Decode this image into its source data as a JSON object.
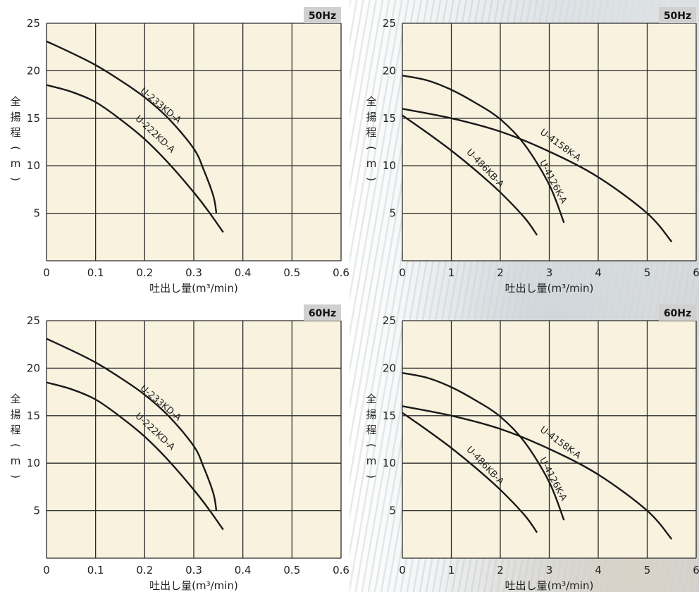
{
  "chart_data": [
    {
      "type": "line",
      "badge": "50Hz",
      "xlabel": "吐出し量(m³/min)",
      "ylabel": "全揚程(m)",
      "xlim": [
        0,
        0.6
      ],
      "ylim": [
        0,
        25
      ],
      "xticks": [
        "0",
        "0.1",
        "0.2",
        "0.3",
        "0.4",
        "0.5",
        "0.6"
      ],
      "yticks": [
        "5",
        "10",
        "15",
        "20",
        "25"
      ],
      "grid": true,
      "series": [
        {
          "name": "U-233KD-A",
          "points": [
            [
              0,
              23.1
            ],
            [
              0.05,
              21.9
            ],
            [
              0.1,
              20.6
            ],
            [
              0.15,
              19.0
            ],
            [
              0.2,
              17.2
            ],
            [
              0.25,
              14.9
            ],
            [
              0.3,
              11.8
            ],
            [
              0.32,
              9.6
            ],
            [
              0.34,
              6.8
            ],
            [
              0.346,
              5.0
            ]
          ]
        },
        {
          "name": "U-222KD-A",
          "points": [
            [
              0,
              18.5
            ],
            [
              0.05,
              17.8
            ],
            [
              0.1,
              16.7
            ],
            [
              0.15,
              14.9
            ],
            [
              0.2,
              12.8
            ],
            [
              0.25,
              10.2
            ],
            [
              0.3,
              7.2
            ],
            [
              0.33,
              5.2
            ],
            [
              0.36,
              3.0
            ]
          ]
        }
      ]
    },
    {
      "type": "line",
      "badge": "50Hz",
      "xlabel": "吐出し量(m³/min)",
      "ylabel": "全揚程(m)",
      "xlim": [
        0,
        6
      ],
      "ylim": [
        0,
        25
      ],
      "xticks": [
        "0",
        "1",
        "2",
        "3",
        "4",
        "5",
        "6"
      ],
      "yticks": [
        "5",
        "10",
        "15",
        "20",
        "25"
      ],
      "grid": true,
      "series": [
        {
          "name": "U-4158K-A",
          "points": [
            [
              0,
              16.0
            ],
            [
              1,
              15.0
            ],
            [
              2,
              13.6
            ],
            [
              3,
              11.5
            ],
            [
              4,
              8.8
            ],
            [
              5,
              5.0
            ],
            [
              5.5,
              2.0
            ]
          ]
        },
        {
          "name": "U-4126K-A",
          "points": [
            [
              0,
              19.5
            ],
            [
              0.5,
              19.0
            ],
            [
              1,
              18.0
            ],
            [
              1.5,
              16.6
            ],
            [
              2,
              14.9
            ],
            [
              2.5,
              12.2
            ],
            [
              3,
              8.0
            ],
            [
              3.3,
              4.0
            ]
          ]
        },
        {
          "name": "U-486KB-A",
          "points": [
            [
              0,
              15.3
            ],
            [
              0.5,
              13.5
            ],
            [
              1,
              11.6
            ],
            [
              1.5,
              9.5
            ],
            [
              2,
              7.2
            ],
            [
              2.5,
              4.5
            ],
            [
              2.75,
              2.7
            ]
          ]
        }
      ]
    },
    {
      "type": "line",
      "badge": "60Hz",
      "xlabel": "吐出し量(m³/min)",
      "ylabel": "全揚程(m)",
      "xlim": [
        0,
        0.6
      ],
      "ylim": [
        0,
        25
      ],
      "xticks": [
        "0",
        "0.1",
        "0.2",
        "0.3",
        "0.4",
        "0.5",
        "0.6"
      ],
      "yticks": [
        "5",
        "10",
        "15",
        "20",
        "25"
      ],
      "grid": true,
      "series": [
        {
          "name": "U-233KD-A",
          "points": [
            [
              0,
              23.1
            ],
            [
              0.05,
              21.9
            ],
            [
              0.1,
              20.6
            ],
            [
              0.15,
              19.0
            ],
            [
              0.2,
              17.2
            ],
            [
              0.25,
              14.9
            ],
            [
              0.3,
              11.8
            ],
            [
              0.32,
              9.6
            ],
            [
              0.34,
              6.8
            ],
            [
              0.346,
              5.0
            ]
          ]
        },
        {
          "name": "U-222KD-A",
          "points": [
            [
              0,
              18.5
            ],
            [
              0.05,
              17.8
            ],
            [
              0.1,
              16.7
            ],
            [
              0.15,
              14.9
            ],
            [
              0.2,
              12.8
            ],
            [
              0.25,
              10.2
            ],
            [
              0.3,
              7.2
            ],
            [
              0.33,
              5.2
            ],
            [
              0.36,
              3.0
            ]
          ]
        }
      ]
    },
    {
      "type": "line",
      "badge": "60Hz",
      "xlabel": "吐出し量(m³/min)",
      "ylabel": "全揚程(m)",
      "xlim": [
        0,
        6
      ],
      "ylim": [
        0,
        25
      ],
      "xticks": [
        "0",
        "1",
        "2",
        "3",
        "4",
        "5",
        "6"
      ],
      "yticks": [
        "5",
        "10",
        "15",
        "20",
        "25"
      ],
      "grid": true,
      "series": [
        {
          "name": "U-4158K-A",
          "points": [
            [
              0,
              16.0
            ],
            [
              1,
              15.0
            ],
            [
              2,
              13.6
            ],
            [
              3,
              11.5
            ],
            [
              4,
              8.8
            ],
            [
              5,
              5.0
            ],
            [
              5.5,
              2.0
            ]
          ]
        },
        {
          "name": "U-4126K-A",
          "points": [
            [
              0,
              19.5
            ],
            [
              0.5,
              19.0
            ],
            [
              1,
              18.0
            ],
            [
              1.5,
              16.6
            ],
            [
              2,
              14.9
            ],
            [
              2.5,
              12.2
            ],
            [
              3,
              8.0
            ],
            [
              3.3,
              4.0
            ]
          ]
        },
        {
          "name": "U-486KB-A",
          "points": [
            [
              0,
              15.3
            ],
            [
              0.5,
              13.5
            ],
            [
              1,
              11.6
            ],
            [
              1.5,
              9.5
            ],
            [
              2,
              7.2
            ],
            [
              2.5,
              4.5
            ],
            [
              2.75,
              2.7
            ]
          ]
        }
      ]
    }
  ],
  "colors": {
    "plot_background": "#f8f2df",
    "grid": "#2a2a2a",
    "curve": "#1a1a1a",
    "badge_background": "#d0d0d0"
  }
}
